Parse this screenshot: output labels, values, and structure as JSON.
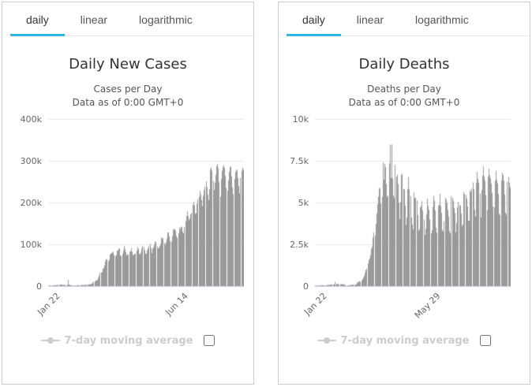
{
  "colors": {
    "accent_tab_underline": "#2db6ea",
    "bar": "#9a9a9a",
    "gridline": "#e6e6e6",
    "axis_line": "#ccd6eb",
    "tick_label": "#666666",
    "title": "#333333",
    "legend_disabled": "#cccccc",
    "panel_border": "#cccccc"
  },
  "panels": [
    {
      "tabs": [
        {
          "label": "daily",
          "active": true
        },
        {
          "label": "linear",
          "active": false
        },
        {
          "label": "logarithmic",
          "active": false
        }
      ],
      "title": "Daily New Cases",
      "subtitle1": "Cases per Day",
      "subtitle2": "Data as of 0:00 GMT+0",
      "yticks": [
        "400k",
        "300k",
        "200k",
        "100k",
        "0"
      ],
      "xticks": [
        "Jan 22",
        "Jun 14"
      ],
      "legend": {
        "label": "7-day moving average",
        "series_hidden": true,
        "checkbox_checked": false
      }
    },
    {
      "tabs": [
        {
          "label": "daily",
          "active": true
        },
        {
          "label": "linear",
          "active": false
        },
        {
          "label": "logarithmic",
          "active": false
        }
      ],
      "title": "Daily Deaths",
      "subtitle1": "Deaths per Day",
      "subtitle2": "Data as of 0:00 GMT+0",
      "yticks": [
        "10k",
        "7.5k",
        "5k",
        "2.5k",
        "0"
      ],
      "xticks": [
        "Jan 22",
        "May 29"
      ],
      "legend": {
        "label": "7-day moving average",
        "series_hidden": true,
        "checkbox_checked": false
      }
    }
  ],
  "chart_data": [
    {
      "type": "bar",
      "title": "Daily New Cases",
      "subtitle": "Cases per Day — Data as of 0:00 GMT+0",
      "xlabel": "",
      "ylabel": "",
      "ylim": [
        0,
        400000
      ],
      "ytick_values": [
        0,
        100000,
        200000,
        300000,
        400000
      ],
      "ytick_labels": [
        "0",
        "100k",
        "200k",
        "300k",
        "400k"
      ],
      "grid": true,
      "legend_position": "bottom",
      "hidden_series": [
        "7-day moving average"
      ],
      "x_description": "daily values starting Jan 22, 2020",
      "x_tick_labels": [
        {
          "label": "Jan 22",
          "day_index": 0
        },
        {
          "label": "Jun 14",
          "day_index": 144
        }
      ],
      "series": [
        {
          "name": "Daily Cases",
          "color": "#9a9a9a",
          "values": [
            500,
            600,
            800,
            900,
            1800,
            1500,
            1800,
            2600,
            2000,
            2100,
            2600,
            2800,
            3200,
            3900,
            3700,
            3400,
            3000,
            2700,
            3000,
            2600,
            2500,
            2000,
            15200,
            4100,
            2600,
            2100,
            2100,
            1900,
            800,
            900,
            1100,
            1300,
            1700,
            1500,
            2200,
            2000,
            2900,
            2500,
            2300,
            2400,
            2600,
            2500,
            3000,
            3100,
            3700,
            4000,
            4100,
            4400,
            5000,
            6300,
            7500,
            10800,
            11300,
            13900,
            13400,
            15400,
            19800,
            24900,
            31600,
            32500,
            34000,
            41500,
            43300,
            49800,
            59400,
            64300,
            64200,
            58700,
            63400,
            75500,
            77700,
            80000,
            79700,
            82500,
            74200,
            71800,
            74700,
            85000,
            85600,
            89700,
            90400,
            73600,
            71900,
            76800,
            84400,
            96000,
            89000,
            81100,
            73500,
            76700,
            74900,
            82100,
            83900,
            91000,
            81700,
            74500,
            74300,
            77800,
            77400,
            84800,
            93500,
            88600,
            78000,
            75700,
            80200,
            90100,
            95800,
            93700,
            85800,
            77900,
            76800,
            85700,
            90200,
            96100,
            101000,
            91400,
            79200,
            89600,
            93300,
            98500,
            106500,
            105600,
            95600,
            90000,
            92200,
            95900,
            101000,
            116400,
            114000,
            115300,
            103200,
            98800,
            105100,
            113800,
            128700,
            128100,
            119600,
            108200,
            106900,
            119500,
            134800,
            135800,
            137000,
            132600,
            120700,
            115400,
            126300,
            140600,
            136200,
            142600,
            141400,
            130200,
            126600,
            141200,
            155500,
            167500,
            179300,
            167500,
            158200,
            161600,
            171700,
            175700,
            194800,
            202800,
            192900,
            173600,
            174600,
            197300,
            207500,
            213300,
            228100,
            219500,
            206100,
            191700,
            215200,
            229400,
            237900,
            250700,
            237100,
            218400,
            205700,
            232300,
            279900,
            284100,
            276400,
            252000,
            230100,
            247000,
            266300,
            288100,
            292000,
            282700,
            248900,
            214000,
            256000,
            276500,
            285300,
            289100,
            282900,
            263800,
            235300,
            227600,
            253400,
            273700,
            284200,
            287100,
            262900,
            236800,
            219800,
            256300,
            273000,
            279100,
            276400,
            258900,
            239200,
            222100,
            259400,
            275600,
            283900,
            278600
          ]
        }
      ]
    },
    {
      "type": "bar",
      "title": "Daily Deaths",
      "subtitle": "Deaths per Day — Data as of 0:00 GMT+0",
      "xlabel": "",
      "ylabel": "",
      "ylim": [
        0,
        10000
      ],
      "ytick_values": [
        0,
        2500,
        5000,
        7500,
        10000
      ],
      "ytick_labels": [
        "0",
        "2.5k",
        "5k",
        "7.5k",
        "10k"
      ],
      "grid": true,
      "legend_position": "bottom",
      "hidden_series": [
        "7-day moving average"
      ],
      "x_description": "daily values starting Jan 22, 2020",
      "x_tick_labels": [
        {
          "label": "Jan 22",
          "day_index": 0
        },
        {
          "label": "May 29",
          "day_index": 128
        }
      ],
      "series": [
        {
          "name": "Daily Deaths",
          "color": "#9a9a9a",
          "values": [
            17,
            18,
            26,
            26,
            49,
            46,
            26,
            46,
            45,
            43,
            46,
            45,
            57,
            64,
            66,
            73,
            73,
            86,
            89,
            97,
            108,
            97,
            254,
            13,
            143,
            142,
            106,
            98,
            115,
            118,
            109,
            97,
            150,
            71,
            52,
            29,
            44,
            47,
            35,
            58,
            67,
            73,
            83,
            95,
            82,
            104,
            97,
            225,
            204,
            281,
            289,
            267,
            335,
            428,
            508,
            610,
            795,
            963,
            1058,
            1357,
            1577,
            1671,
            1868,
            2223,
            2341,
            2923,
            3215,
            3036,
            3727,
            4351,
            4903,
            5357,
            5880,
            5821,
            4943,
            5339,
            7412,
            6376,
            7310,
            7114,
            6100,
            5345,
            5435,
            7343,
            8470,
            6476,
            8475,
            6450,
            5434,
            5292,
            7247,
            6552,
            6670,
            6101,
            4983,
            4012,
            5014,
            6660,
            6716,
            5815,
            5783,
            4818,
            3655,
            4081,
            5820,
            6539,
            5785,
            5389,
            4100,
            3684,
            3380,
            5596,
            5262,
            5307,
            5121,
            4252,
            3322,
            3408,
            4720,
            4792,
            5080,
            4529,
            3990,
            3068,
            3423,
            4306,
            5236,
            4807,
            4560,
            3983,
            3153,
            3342,
            4741,
            5404,
            5119,
            4526,
            3499,
            3196,
            4821,
            4878,
            5523,
            4796,
            4372,
            3361,
            3277,
            3872,
            5291,
            5180,
            4965,
            4565,
            4158,
            3285,
            3139,
            5369,
            5288,
            5103,
            4692,
            4368,
            3227,
            3773,
            4718,
            5039,
            4866,
            4819,
            4337,
            3586,
            3685,
            5640,
            5499,
            5461,
            5253,
            4767,
            3924,
            3905,
            5739,
            5648,
            5841,
            6210,
            5789,
            4562,
            4159,
            6163,
            6841,
            6421,
            6190,
            5540,
            4100,
            5735,
            6608,
            7168,
            6549,
            6306,
            5444,
            4537,
            6538,
            7028,
            6640,
            6455,
            6130,
            5575,
            4773,
            4711,
            6318,
            6905,
            6370,
            6135,
            5506,
            4340,
            4252,
            6327,
            6795,
            6639,
            6299,
            5482,
            4388,
            4263,
            6244,
            6531,
            6192,
            5907
          ]
        }
      ]
    }
  ]
}
